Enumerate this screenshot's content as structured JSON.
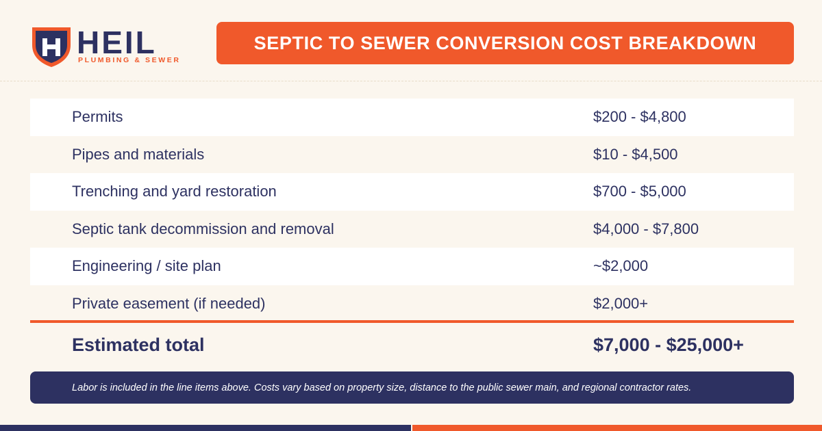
{
  "brand": {
    "name": "HEIL",
    "subtitle": "PLUMBING & SEWER",
    "logo_icon": "shield-h-logo",
    "colors": {
      "navy": "#2d3161",
      "orange": "#f0592b",
      "background": "#fbf6ee"
    }
  },
  "title": "SEPTIC TO SEWER CONVERSION COST BREAKDOWN",
  "rows": [
    {
      "label": "Permits",
      "value": "$200 - $4,800"
    },
    {
      "label": "Pipes and materials",
      "value": "$10 - $4,500"
    },
    {
      "label": "Trenching and yard restoration",
      "value": "$700 - $5,000"
    },
    {
      "label": "Septic tank decommission and removal",
      "value": "$4,000 - $7,800"
    },
    {
      "label": "Engineering / site plan",
      "value": "~$2,000"
    },
    {
      "label": "Private easement (if needed)",
      "value": "$2,000+"
    }
  ],
  "total": {
    "label": "Estimated total",
    "value": "$7,000 - $25,000+"
  },
  "note": "Labor is included in the line items above. Costs vary based on property size, distance to the public sewer main, and regional contractor rates."
}
